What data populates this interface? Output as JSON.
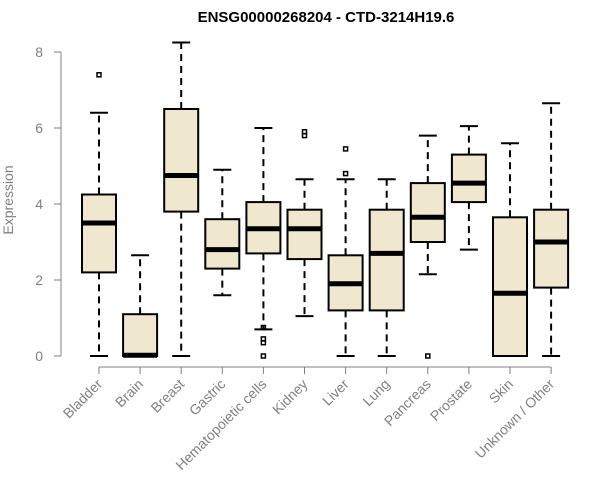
{
  "chart_data": {
    "type": "boxplot",
    "title": "ENSG00000268204 - CTD-3214H19.6",
    "ylabel": "Expression",
    "ylim": [
      0,
      8.3
    ],
    "yticks": [
      0,
      2,
      4,
      6,
      8
    ],
    "box_fill": "#efe8cf",
    "categories": [
      "Bladder",
      "Brain",
      "Breast",
      "Gastric",
      "Hematopoietic cells",
      "Kidney",
      "Liver",
      "Lung",
      "Pancreas",
      "Prostate",
      "Skin",
      "Unknown / Other"
    ],
    "boxes": [
      {
        "whisker_low": 0.0,
        "q1": 2.2,
        "median": 3.5,
        "q3": 4.25,
        "whisker_high": 6.4,
        "outliers": [
          7.4
        ]
      },
      {
        "whisker_low": 0.0,
        "q1": 0.0,
        "median": 0.02,
        "q3": 1.1,
        "whisker_high": 2.65,
        "outliers": []
      },
      {
        "whisker_low": 0.0,
        "q1": 3.8,
        "median": 4.75,
        "q3": 6.5,
        "whisker_high": 8.25,
        "outliers": []
      },
      {
        "whisker_low": 1.6,
        "q1": 2.3,
        "median": 2.8,
        "q3": 3.6,
        "whisker_high": 4.9,
        "outliers": []
      },
      {
        "whisker_low": 0.7,
        "q1": 2.7,
        "median": 3.35,
        "q3": 4.05,
        "whisker_high": 6.0,
        "outliers": [
          0.0,
          0.35,
          0.45,
          0.75
        ]
      },
      {
        "whisker_low": 1.05,
        "q1": 2.55,
        "median": 3.35,
        "q3": 3.85,
        "whisker_high": 4.65,
        "outliers": [
          5.8,
          5.9
        ]
      },
      {
        "whisker_low": 0.0,
        "q1": 1.2,
        "median": 1.9,
        "q3": 2.65,
        "whisker_high": 4.65,
        "outliers": [
          4.8,
          5.45
        ]
      },
      {
        "whisker_low": 0.0,
        "q1": 1.2,
        "median": 2.7,
        "q3": 3.85,
        "whisker_high": 4.65,
        "outliers": []
      },
      {
        "whisker_low": 2.15,
        "q1": 3.0,
        "median": 3.65,
        "q3": 4.55,
        "whisker_high": 5.8,
        "outliers": [
          0.0
        ]
      },
      {
        "whisker_low": 2.8,
        "q1": 4.05,
        "median": 4.55,
        "q3": 5.3,
        "whisker_high": 6.05,
        "outliers": []
      },
      {
        "whisker_low": 0.0,
        "q1": 0.0,
        "median": 1.65,
        "q3": 3.65,
        "whisker_high": 5.6,
        "outliers": []
      },
      {
        "whisker_low": 0.0,
        "q1": 1.8,
        "median": 3.0,
        "q3": 3.85,
        "whisker_high": 6.65,
        "outliers": []
      }
    ]
  }
}
